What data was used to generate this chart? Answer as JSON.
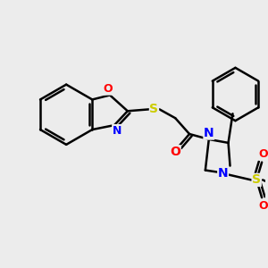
{
  "background_color": "#ececec",
  "figure_size": [
    3.0,
    3.0
  ],
  "dpi": 100,
  "bond_color": "black",
  "bond_lw": 1.8,
  "atom_colors": {
    "O": "red",
    "N": "blue",
    "S": "#cccc00"
  }
}
